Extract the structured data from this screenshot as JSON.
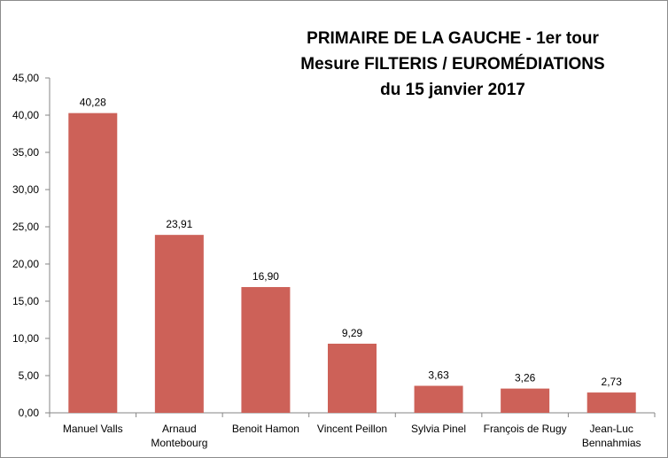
{
  "chart_data": {
    "type": "bar",
    "title": [
      "PRIMAIRE DE LA GAUCHE - 1er tour",
      "Mesure FILTERIS / EUROMÉDIATIONS",
      "du 15 janvier 2017"
    ],
    "categories": [
      [
        "Manuel Valls"
      ],
      [
        "Arnaud",
        "Montebourg"
      ],
      [
        "Benoit Hamon"
      ],
      [
        "Vincent Peillon"
      ],
      [
        "Sylvia Pinel"
      ],
      [
        "François de Rugy"
      ],
      [
        "Jean-Luc",
        "Bennahmias"
      ]
    ],
    "values": [
      40.28,
      23.91,
      16.9,
      9.29,
      3.63,
      3.26,
      2.73
    ],
    "data_labels": [
      "40,28",
      "23,91",
      "16,90",
      "9,29",
      "3,63",
      "3,26",
      "2,73"
    ],
    "y_ticks": [
      0,
      5,
      10,
      15,
      20,
      25,
      30,
      35,
      40,
      45
    ],
    "y_tick_labels": [
      "0,00",
      "5,00",
      "10,00",
      "15,00",
      "20,00",
      "25,00",
      "30,00",
      "35,00",
      "40,00",
      "45,00"
    ],
    "ylim": [
      0,
      45
    ],
    "xlabel": "",
    "ylabel": "",
    "grid": false,
    "legend": "none",
    "colors": {
      "bar": "#cd6158",
      "axis": "#868686"
    }
  }
}
